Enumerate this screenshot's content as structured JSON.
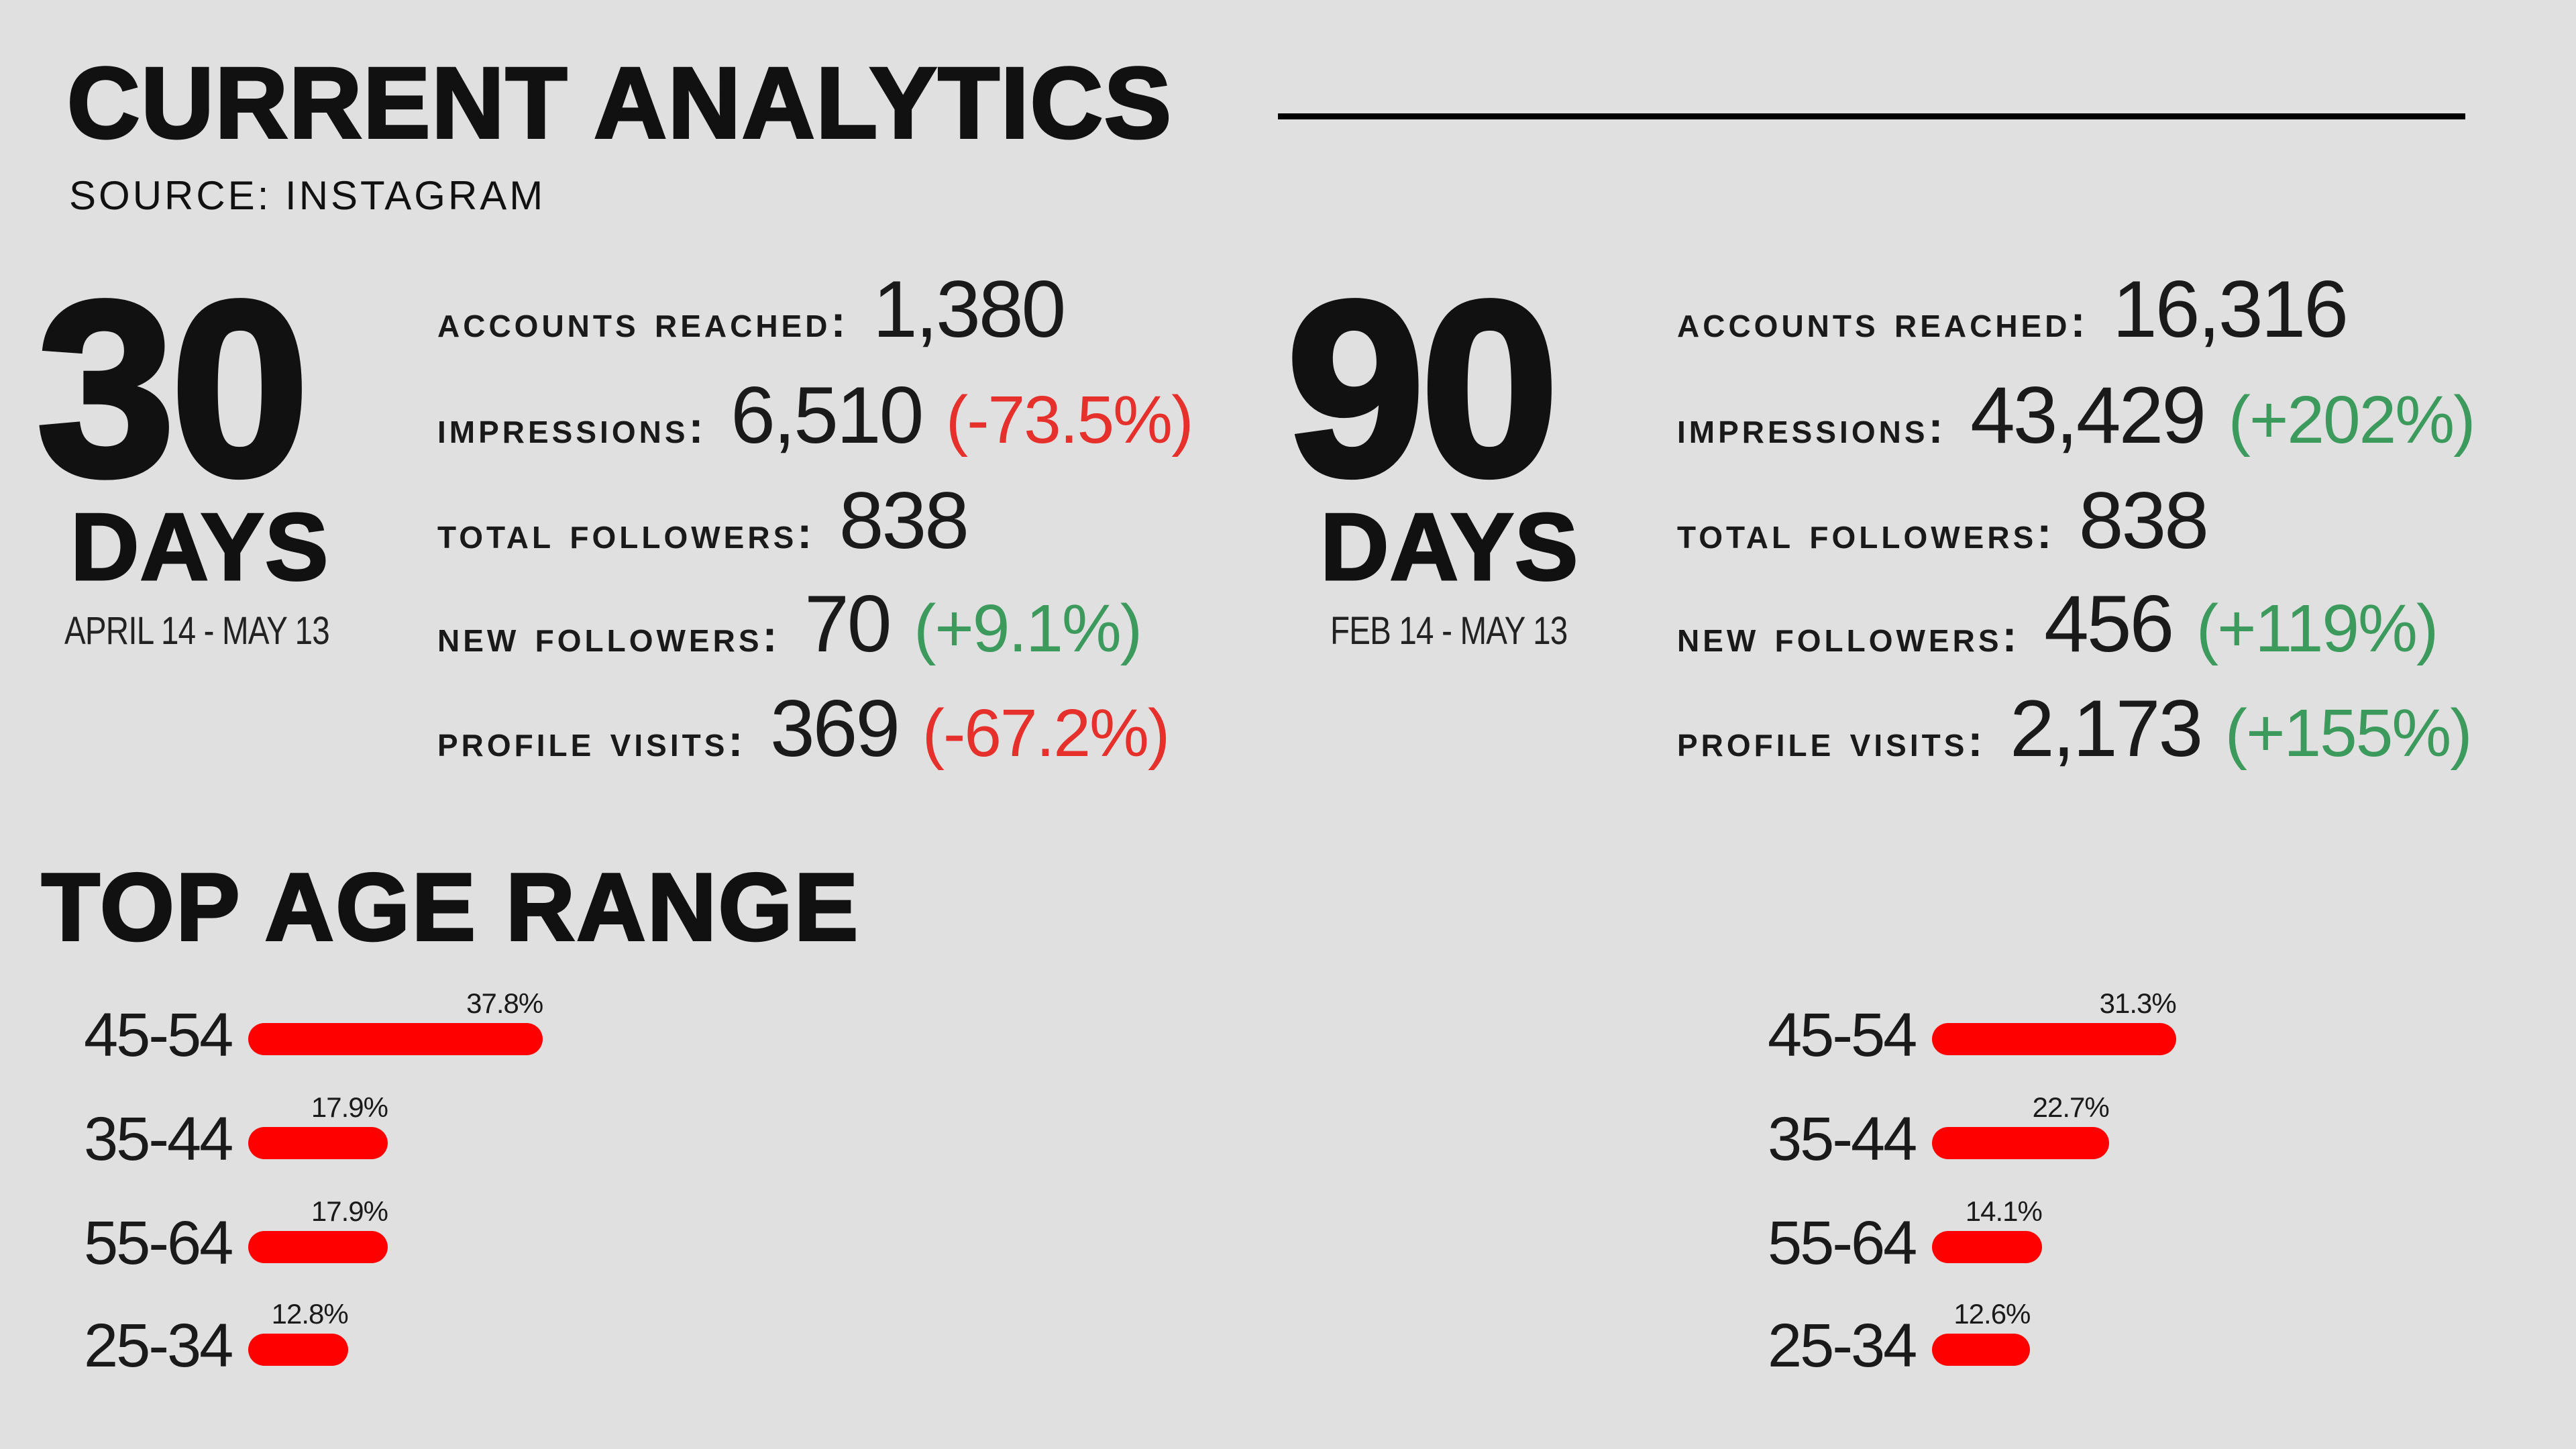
{
  "header": {
    "title": "CURRENT ANALYTICS",
    "subtitle": "SOURCE: INSTAGRAM"
  },
  "periods": [
    {
      "number": "30",
      "unit": "DAYS",
      "range": "APRIL 14 - MAY 13",
      "stats": [
        {
          "label": "Accounts reached:",
          "value": "1,380",
          "change": ""
        },
        {
          "label": "Impressions:",
          "value": "6,510",
          "change": "(-73.5%)"
        },
        {
          "label": "Total followers:",
          "value": "838",
          "change": ""
        },
        {
          "label": "New followers:",
          "value": "70",
          "change": "(+9.1%)"
        },
        {
          "label": "Profile visits:",
          "value": "369",
          "change": "(-67.2%)"
        }
      ]
    },
    {
      "number": "90",
      "unit": "DAYS",
      "range": "FEB 14 - MAY 13",
      "stats": [
        {
          "label": "Accounts reached:",
          "value": "16,316",
          "change": ""
        },
        {
          "label": "Impressions:",
          "value": "43,429",
          "change": "(+202%)"
        },
        {
          "label": "Total followers:",
          "value": "838",
          "change": ""
        },
        {
          "label": "New followers:",
          "value": "456",
          "change": "(+119%)"
        },
        {
          "label": "Profile visits:",
          "value": "2,173",
          "change": "(+155%)"
        }
      ]
    }
  ],
  "colors": {
    "negative": "#e5302b",
    "positive": "#3d9a5d",
    "bar": "#ff0000",
    "background": "#e0e0e0"
  },
  "age_section": {
    "title": "TOP AGE RANGE"
  },
  "chart_data": [
    {
      "type": "bar",
      "orientation": "horizontal",
      "categories": [
        "45-54",
        "35-44",
        "55-64",
        "25-34"
      ],
      "values": [
        37.8,
        17.9,
        17.9,
        12.8
      ],
      "value_labels": [
        "37.8%",
        "17.9%",
        "17.9%",
        "12.8%"
      ]
    },
    {
      "type": "bar",
      "orientation": "horizontal",
      "categories": [
        "45-54",
        "35-44",
        "55-64",
        "25-34"
      ],
      "values": [
        31.3,
        22.7,
        14.1,
        12.6
      ],
      "value_labels": [
        "31.3%",
        "22.7%",
        "14.1%",
        "12.6%"
      ]
    }
  ]
}
